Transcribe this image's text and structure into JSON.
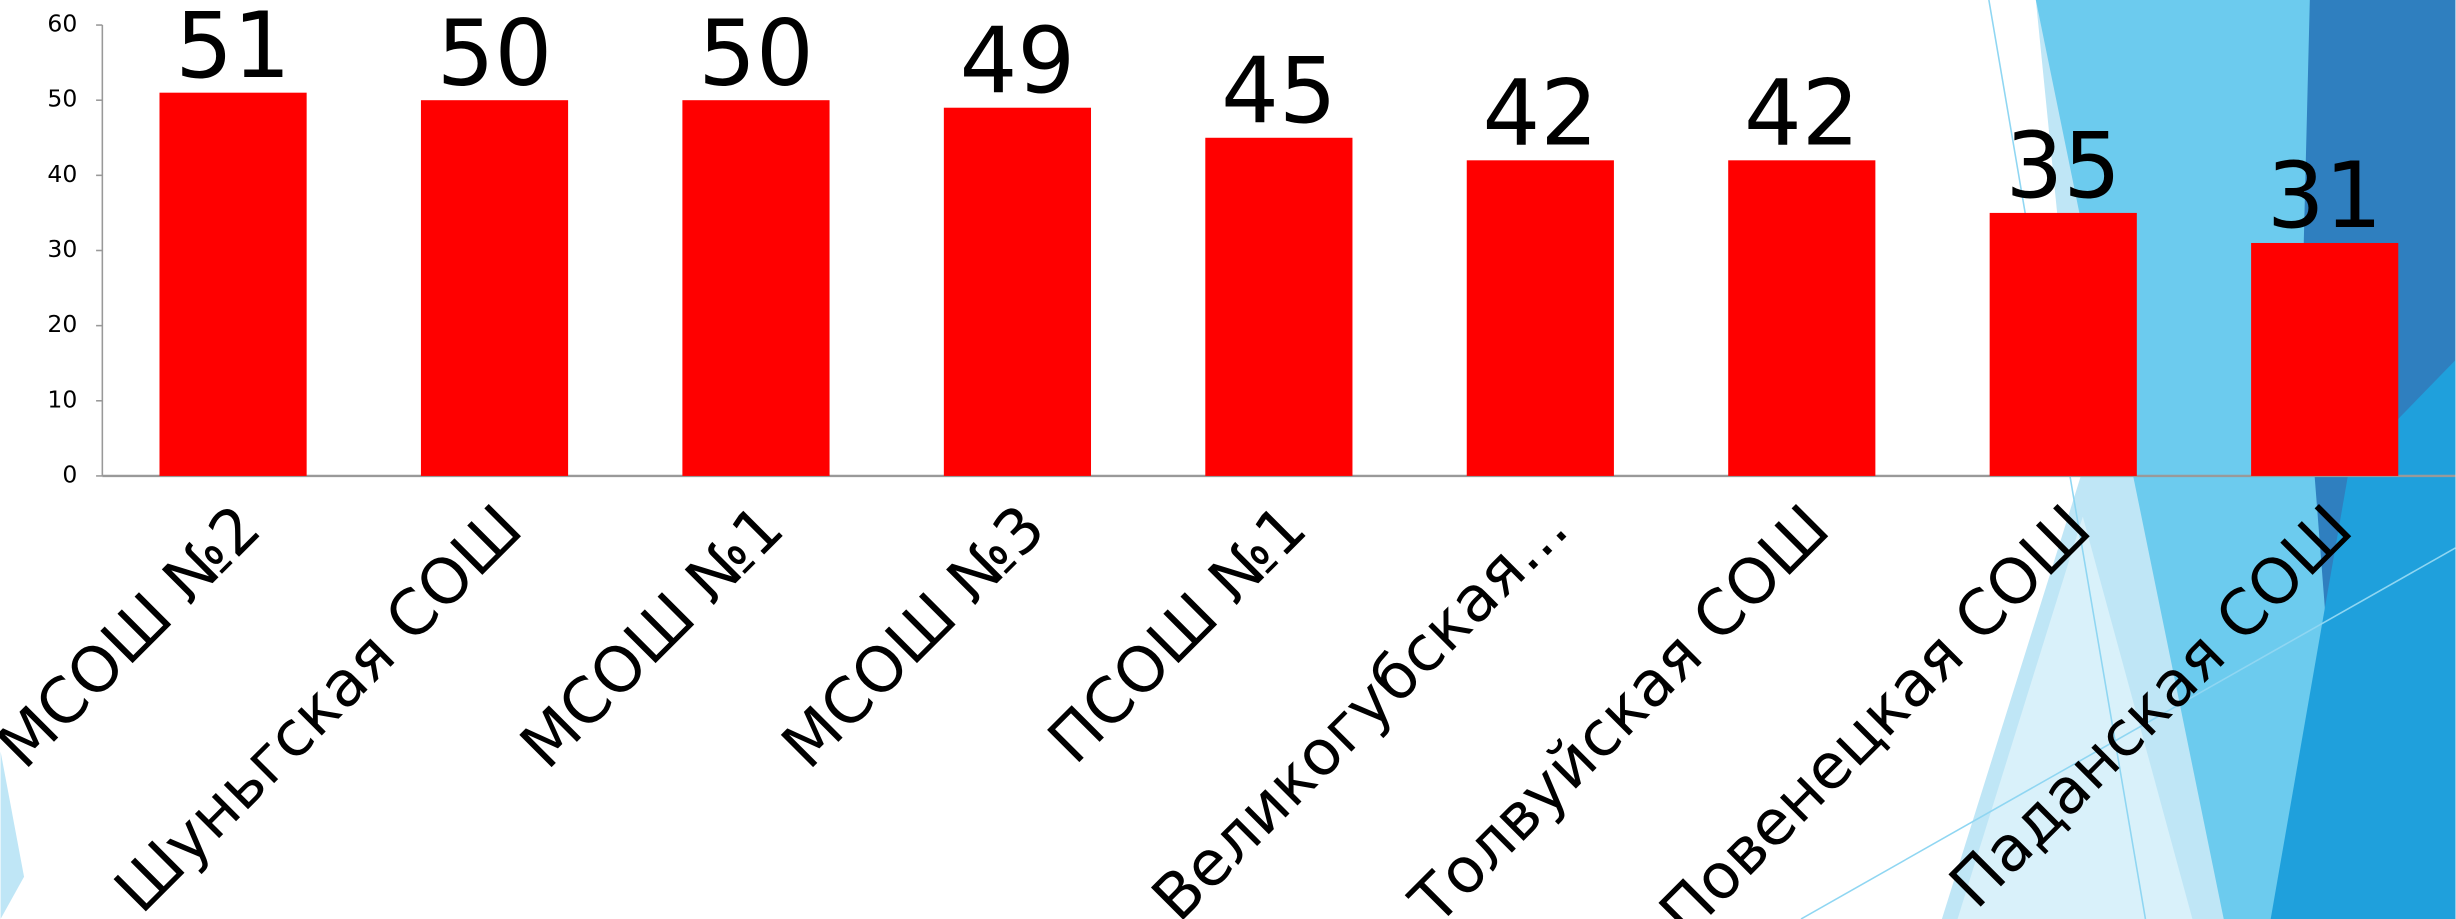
{
  "chart_data": {
    "type": "bar",
    "categories": [
      "МСОШ №2",
      "Шуньгская СОШ",
      "МСОШ №1",
      "МСОШ №3",
      "ПСОШ №1",
      "Великогубская...",
      "Толвуйская СОШ",
      "Повенецкая СОШ",
      "Паданская СОШ"
    ],
    "values": [
      51,
      50,
      50,
      49,
      45,
      42,
      42,
      35,
      31
    ],
    "color": "#ff0000",
    "ylim": [
      0,
      60
    ],
    "yticks": [
      0,
      10,
      20,
      30,
      40,
      50,
      60
    ],
    "grid": false
  }
}
